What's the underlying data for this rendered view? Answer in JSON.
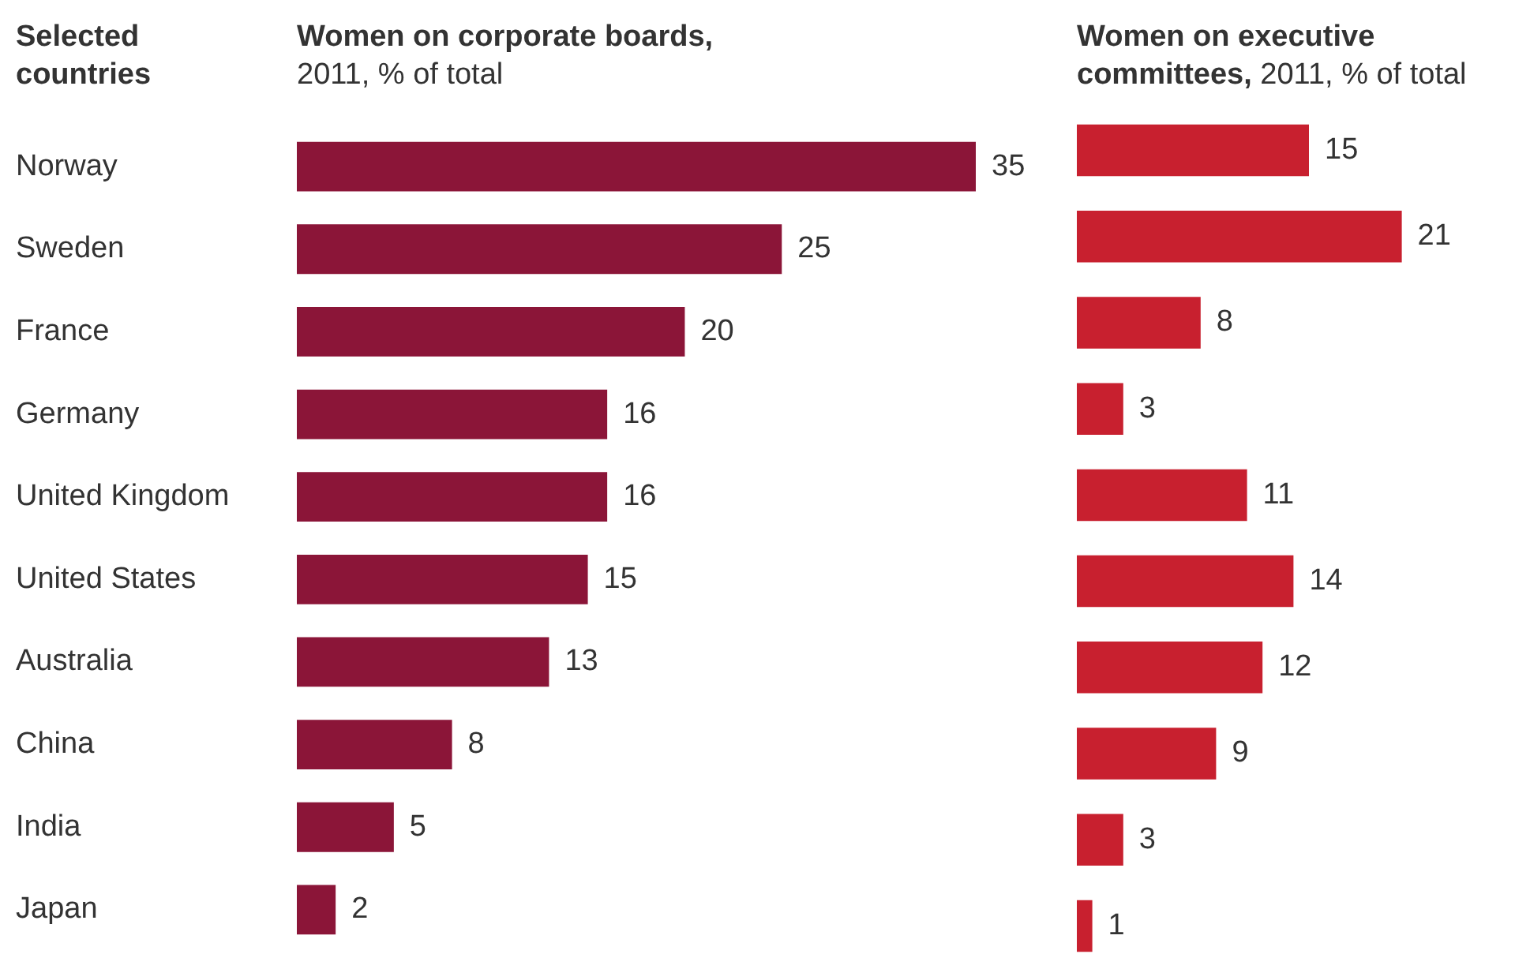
{
  "chart_data": [
    {
      "type": "bar",
      "orientation": "horizontal",
      "ylabel": "Selected countries",
      "title": "Women on corporate boards,",
      "subtitle": "2011, % of total",
      "categories": [
        "Norway",
        "Sweden",
        "France",
        "Germany",
        "United Kingdom",
        "United States",
        "Australia",
        "China",
        "India",
        "Japan"
      ],
      "values": [
        35,
        25,
        20,
        16,
        16,
        15,
        13,
        8,
        5,
        2
      ],
      "color": "#8b1538",
      "data_labels": true,
      "tick_labels": "y"
    },
    {
      "type": "bar",
      "orientation": "horizontal",
      "title": "Women on executive committees,",
      "subtitle": "2011, % of total",
      "categories": [
        null,
        null,
        null,
        null,
        null,
        null,
        null,
        null,
        null,
        null
      ],
      "values": [
        15,
        21,
        8,
        3,
        11,
        14,
        12,
        9,
        3,
        1
      ],
      "color": "#c8202f",
      "data_labels": true,
      "tick_labels": false
    }
  ]
}
